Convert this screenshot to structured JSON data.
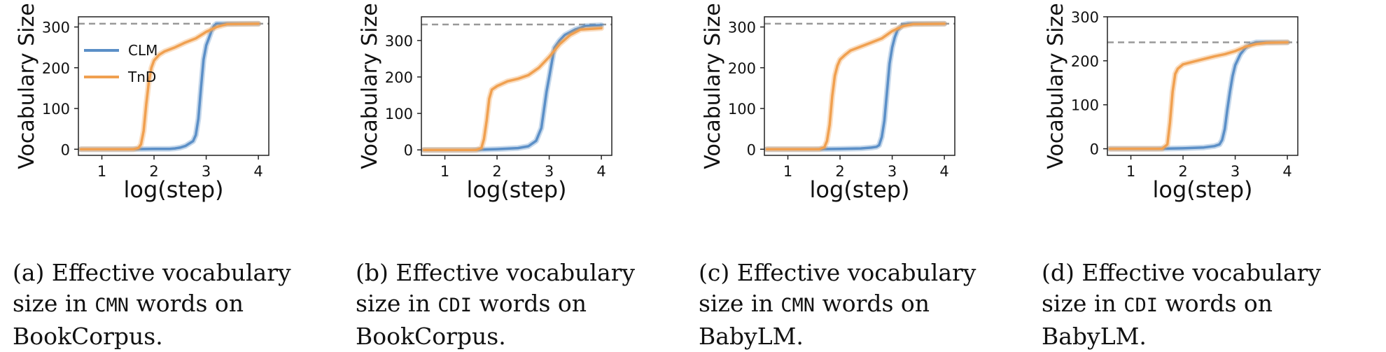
{
  "chart_data": [
    {
      "type": "line",
      "caption": {
        "prefix": "(a) Effective vocabulary size in",
        "code": "CMN",
        "suffix": "words on BookCorpus."
      },
      "xlabel": "log(step)",
      "ylabel": "Vocabulary Size",
      "xlim": [
        0.55,
        4.2
      ],
      "ylim": [
        -15,
        325
      ],
      "xticks": [
        1,
        2,
        3,
        4
      ],
      "yticks": [
        0,
        100,
        200,
        300
      ],
      "hline": 308,
      "legend": {
        "position": "top-left",
        "entries": [
          "CLM",
          "TnD"
        ]
      },
      "series": [
        {
          "name": "CLM",
          "color": "#5b8fc7",
          "x": [
            0.6,
            1.5,
            2.0,
            2.3,
            2.4,
            2.5,
            2.6,
            2.75,
            2.8,
            2.85,
            2.9,
            2.95,
            3.0,
            3.05,
            3.1,
            3.15,
            3.2,
            4.0
          ],
          "y": [
            0,
            0,
            1,
            1,
            2,
            4,
            8,
            20,
            35,
            75,
            150,
            220,
            255,
            272,
            290,
            303,
            308,
            308
          ]
        },
        {
          "name": "TnD",
          "color": "#f0a050",
          "x": [
            0.6,
            1.6,
            1.7,
            1.75,
            1.8,
            1.85,
            1.9,
            1.95,
            2.0,
            2.1,
            2.2,
            2.4,
            2.6,
            2.8,
            3.0,
            3.2,
            3.4,
            4.0
          ],
          "y": [
            0,
            0,
            3,
            12,
            45,
            110,
            165,
            200,
            218,
            232,
            240,
            250,
            262,
            272,
            288,
            300,
            307,
            308
          ]
        }
      ]
    },
    {
      "type": "line",
      "caption": {
        "prefix": "(b) Effective vocabulary size in",
        "code": "CDI",
        "suffix": "words on BookCorpus."
      },
      "xlabel": "log(step)",
      "ylabel": "Vocabulary Size",
      "xlim": [
        0.55,
        4.2
      ],
      "ylim": [
        -15,
        365
      ],
      "xticks": [
        1,
        2,
        3,
        4
      ],
      "yticks": [
        0,
        100,
        200,
        300
      ],
      "hline": 344,
      "legend": null,
      "series": [
        {
          "name": "CLM",
          "color": "#5b8fc7",
          "x": [
            0.6,
            1.5,
            2.0,
            2.4,
            2.6,
            2.75,
            2.85,
            2.9,
            2.95,
            3.0,
            3.05,
            3.1,
            3.2,
            3.3,
            3.5,
            3.7,
            4.0
          ],
          "y": [
            0,
            0,
            2,
            5,
            10,
            25,
            60,
            110,
            160,
            200,
            240,
            280,
            300,
            315,
            330,
            340,
            342
          ]
        },
        {
          "name": "TnD",
          "color": "#f0a050",
          "x": [
            0.6,
            1.6,
            1.7,
            1.75,
            1.8,
            1.85,
            1.9,
            2.0,
            2.2,
            2.4,
            2.6,
            2.8,
            3.0,
            3.2,
            3.4,
            3.6,
            4.0
          ],
          "y": [
            0,
            0,
            5,
            30,
            80,
            140,
            165,
            175,
            188,
            195,
            205,
            225,
            255,
            290,
            315,
            330,
            334
          ]
        }
      ]
    },
    {
      "type": "line",
      "caption": {
        "prefix": "(c) Effective vocabulary size in",
        "code": "CMN",
        "suffix": "words on BabyLM."
      },
      "xlabel": "log(step)",
      "ylabel": "Vocabulary Size",
      "xlim": [
        0.55,
        4.2
      ],
      "ylim": [
        -15,
        325
      ],
      "xticks": [
        1,
        2,
        3,
        4
      ],
      "yticks": [
        0,
        100,
        200,
        300
      ],
      "hline": 308,
      "legend": null,
      "series": [
        {
          "name": "CLM",
          "color": "#5b8fc7",
          "x": [
            0.6,
            1.5,
            2.0,
            2.4,
            2.6,
            2.7,
            2.75,
            2.8,
            2.85,
            2.9,
            2.95,
            3.0,
            3.05,
            3.1,
            3.2,
            3.3,
            4.0
          ],
          "y": [
            0,
            0,
            1,
            2,
            4,
            6,
            10,
            30,
            70,
            140,
            210,
            250,
            275,
            292,
            305,
            308,
            308
          ]
        },
        {
          "name": "TnD",
          "color": "#f0a050",
          "x": [
            0.6,
            1.6,
            1.7,
            1.75,
            1.8,
            1.85,
            1.9,
            1.95,
            2.0,
            2.1,
            2.2,
            2.4,
            2.6,
            2.8,
            3.0,
            3.2,
            3.4,
            4.0
          ],
          "y": [
            0,
            0,
            5,
            20,
            60,
            130,
            180,
            205,
            220,
            232,
            242,
            252,
            262,
            272,
            290,
            302,
            307,
            308
          ]
        }
      ]
    },
    {
      "type": "line",
      "caption": {
        "prefix": "(d) Effective vocabulary size in",
        "code": "CDI",
        "suffix": "words on BabyLM."
      },
      "xlabel": "log(step)",
      "ylabel": "Vocabulary Size",
      "xlim": [
        0.55,
        4.2
      ],
      "ylim": [
        -15,
        300
      ],
      "xticks": [
        1,
        2,
        3,
        4
      ],
      "yticks": [
        0,
        100,
        200,
        300
      ],
      "hline": 242,
      "legend": null,
      "series": [
        {
          "name": "CLM",
          "color": "#5b8fc7",
          "x": [
            0.6,
            1.5,
            2.0,
            2.4,
            2.6,
            2.7,
            2.75,
            2.8,
            2.85,
            2.9,
            2.95,
            3.0,
            3.1,
            3.2,
            3.3,
            3.4,
            4.0
          ],
          "y": [
            0,
            0,
            1,
            3,
            6,
            10,
            20,
            45,
            90,
            130,
            165,
            190,
            215,
            230,
            238,
            242,
            242
          ]
        },
        {
          "name": "TnD",
          "color": "#f0a050",
          "x": [
            0.6,
            1.6,
            1.7,
            1.75,
            1.8,
            1.85,
            1.9,
            2.0,
            2.2,
            2.4,
            2.6,
            2.8,
            3.0,
            3.2,
            3.4,
            3.6,
            4.0
          ],
          "y": [
            0,
            0,
            10,
            60,
            130,
            170,
            182,
            192,
            198,
            204,
            210,
            215,
            222,
            232,
            238,
            241,
            242
          ]
        }
      ]
    }
  ]
}
